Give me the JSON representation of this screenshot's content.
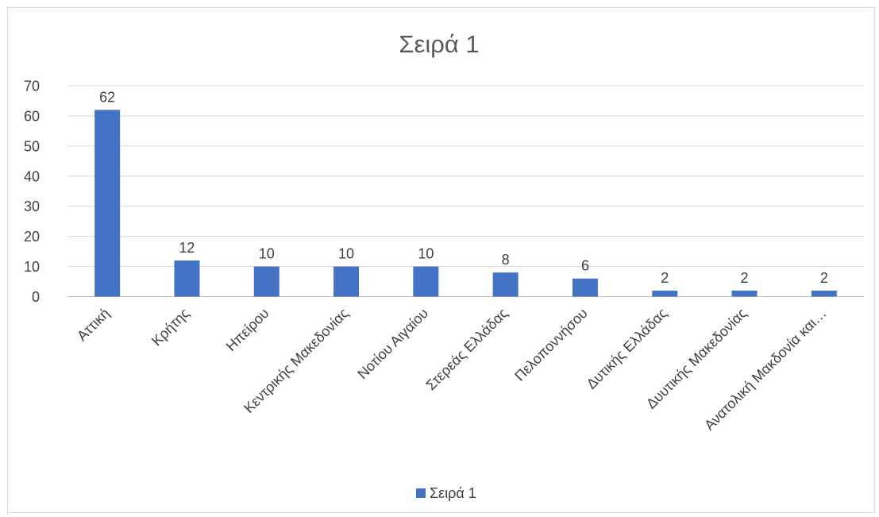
{
  "chart_data": {
    "type": "bar",
    "title": "Σειρά 1",
    "categories": [
      "Αττική",
      "Κρήτης",
      "Ηπείρου",
      "Κεντρικής Μακεδονίας",
      "Νοτίου Αιγαίου",
      "Στερεάς Ελλάδας",
      "Πελοποννήσου",
      "Δυτικής Ελλάδας",
      "Δυυτικής Μακεδονίας",
      "Ανατολική Μακδονία και…"
    ],
    "series": [
      {
        "name": "Σειρά 1",
        "values": [
          62,
          12,
          10,
          10,
          10,
          8,
          6,
          2,
          2,
          2
        ],
        "color": "#4472c4"
      }
    ],
    "ylim": [
      0,
      70
    ],
    "yticks": [
      0,
      10,
      20,
      30,
      40,
      50,
      60,
      70
    ],
    "grid": true,
    "data_labels": true,
    "legend": "bottom"
  }
}
